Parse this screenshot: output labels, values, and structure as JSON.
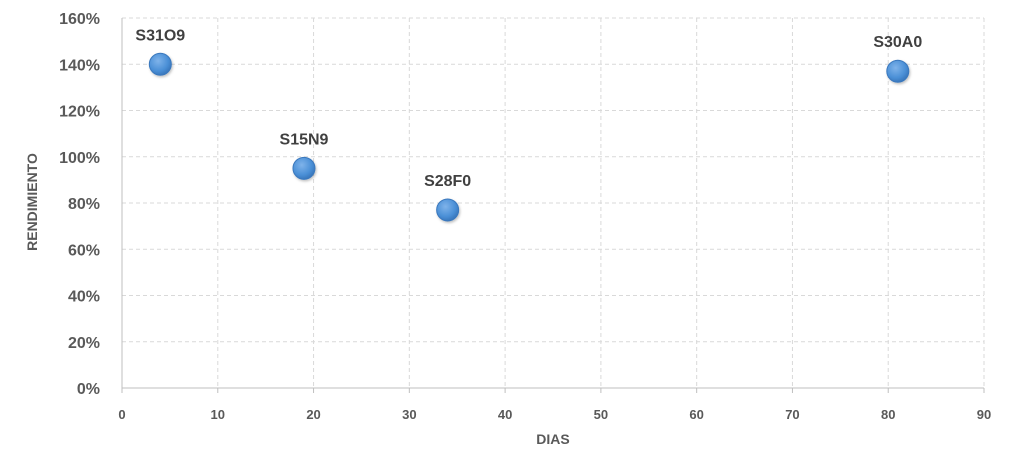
{
  "chart_data": {
    "type": "scatter",
    "title": "",
    "xlabel": "DIAS",
    "ylabel": "RENDIMIENTO",
    "xlim": [
      0,
      90
    ],
    "ylim": [
      0,
      1.6
    ],
    "x_ticks": [
      0,
      10,
      20,
      30,
      40,
      50,
      60,
      70,
      80,
      90
    ],
    "x_tick_labels": [
      "0",
      "10",
      "20",
      "30",
      "40",
      "50",
      "60",
      "70",
      "80",
      "90"
    ],
    "y_ticks": [
      0,
      0.2,
      0.4,
      0.6,
      0.8,
      1.0,
      1.2,
      1.4,
      1.6
    ],
    "y_tick_labels": [
      "0%",
      "20%",
      "40%",
      "60%",
      "80%",
      "100%",
      "120%",
      "140%",
      "160%"
    ],
    "grid": true,
    "legend": "none",
    "marker_color": "#4a8fd6",
    "points": [
      {
        "label": "S31O9",
        "x": 4,
        "y": 1.4
      },
      {
        "label": "S15N9",
        "x": 19,
        "y": 0.95
      },
      {
        "label": "S28F0",
        "x": 34,
        "y": 0.77
      },
      {
        "label": "S30A0",
        "x": 81,
        "y": 1.37
      }
    ]
  }
}
